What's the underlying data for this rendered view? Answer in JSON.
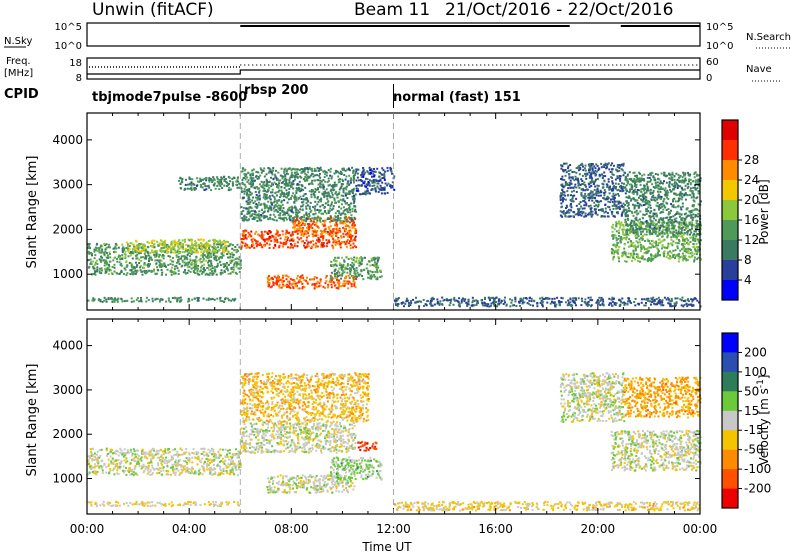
{
  "header": {
    "radar": "Unwin (fitACF)",
    "beam": "Beam 11",
    "date_range": "21/Oct/2016 - 22/Oct/2016"
  },
  "strips": {
    "nsky_label": "N.Sky",
    "nsearch_label": "N.Search",
    "nsky_ticks": [
      "10^5",
      "10^0"
    ],
    "nsearch_ticks": [
      "10^5",
      "10^0"
    ],
    "freq_label": "Freq.",
    "freq_unit": "[MHz]",
    "freq_ticks": [
      "18",
      "8"
    ],
    "nave_label": "Nave",
    "nave_ticks": [
      "60",
      "0"
    ],
    "cpid_label": "CPID"
  },
  "cpid_segments": [
    {
      "start_hour": 0,
      "label": "tbjmode7pulse -8600"
    },
    {
      "start_hour": 6,
      "label": "rbsp 200"
    },
    {
      "start_hour": 12,
      "label": "normal (fast) 151"
    }
  ],
  "colors": {
    "power": [
      "#0000ff",
      "#2a3e9c",
      "#3b7a62",
      "#4f9a5a",
      "#8cc83c",
      "#f2c700",
      "#ff8c00",
      "#ff3000",
      "#e00000"
    ],
    "velocity": [
      "#0000ff",
      "#2b4fb0",
      "#2e7d5a",
      "#6cc93a",
      "#c8c8c8",
      "#f5c400",
      "#ff8c00",
      "#ff5000",
      "#ee0000"
    ]
  },
  "chart_data": [
    {
      "type": "heatmap",
      "name": "power",
      "xlabel": "",
      "ylabel": "Slant Range [km]",
      "x_range_hours": [
        0,
        24
      ],
      "ylim": [
        200,
        4600
      ],
      "yticks": [
        "1000",
        "2000",
        "3000",
        "4000"
      ],
      "colorbar": {
        "label": "Power [dB]",
        "ticks": [
          "4",
          "8",
          "12",
          "16",
          "20",
          "24",
          "28"
        ],
        "range": [
          0,
          32
        ]
      },
      "regions": [
        {
          "t0": 0,
          "t1": 6,
          "r0": 1000,
          "r1": 1700,
          "v": 12
        },
        {
          "t0": 1.5,
          "t1": 5.5,
          "r0": 1500,
          "r1": 1800,
          "v": 17
        },
        {
          "t0": 0,
          "t1": 6,
          "r0": 400,
          "r1": 500,
          "v": 10
        },
        {
          "t0": 3.5,
          "t1": 6,
          "r0": 2900,
          "r1": 3200,
          "v": 10
        },
        {
          "t0": 6,
          "t1": 10.5,
          "r0": 1600,
          "r1": 2000,
          "v": 26
        },
        {
          "t0": 8,
          "t1": 10.5,
          "r0": 1900,
          "r1": 2300,
          "v": 24
        },
        {
          "t0": 6,
          "t1": 10.5,
          "r0": 2200,
          "r1": 3400,
          "v": 10
        },
        {
          "t0": 7,
          "t1": 10.5,
          "r0": 700,
          "r1": 1000,
          "v": 25
        },
        {
          "t0": 9.5,
          "t1": 11.5,
          "r0": 900,
          "r1": 1400,
          "v": 12
        },
        {
          "t0": 10.5,
          "t1": 12,
          "r0": 2800,
          "r1": 3400,
          "v": 6
        },
        {
          "t0": 12,
          "t1": 24,
          "r0": 300,
          "r1": 500,
          "v": 7
        },
        {
          "t0": 18.5,
          "t1": 21,
          "r0": 2300,
          "r1": 3500,
          "v": 7
        },
        {
          "t0": 20.5,
          "t1": 24,
          "r0": 1300,
          "r1": 2200,
          "v": 14
        },
        {
          "t0": 21,
          "t1": 24,
          "r0": 1900,
          "r1": 3300,
          "v": 10
        }
      ]
    },
    {
      "type": "heatmap",
      "name": "velocity",
      "xlabel": "Time UT",
      "ylabel": "Slant Range [km]",
      "x_range_hours": [
        0,
        24
      ],
      "xticks": [
        "00:00",
        "04:00",
        "08:00",
        "12:00",
        "16:00",
        "20:00",
        "00:00"
      ],
      "ylim": [
        200,
        4600
      ],
      "yticks": [
        "1000",
        "2000",
        "3000",
        "4000"
      ],
      "colorbar": {
        "label": "Velocity [m s^-1]",
        "ticks": [
          "200",
          "100",
          "50",
          "15",
          "-15",
          "-50",
          "-100",
          "-200"
        ],
        "range": [
          -250,
          250
        ]
      },
      "regions": [
        {
          "t0": 0,
          "t1": 6,
          "r0": 1100,
          "r1": 1700,
          "v": 0
        },
        {
          "t0": 0,
          "t1": 6,
          "r0": 400,
          "r1": 500,
          "v": -30
        },
        {
          "t0": 6,
          "t1": 10.5,
          "r0": 1600,
          "r1": 2300,
          "v": 0
        },
        {
          "t0": 6,
          "t1": 11,
          "r0": 2300,
          "r1": 3400,
          "v": -60
        },
        {
          "t0": 7,
          "t1": 10.5,
          "r0": 700,
          "r1": 1100,
          "v": 0
        },
        {
          "t0": 9.5,
          "t1": 11.5,
          "r0": 1000,
          "r1": 1500,
          "v": 40
        },
        {
          "t0": 10.5,
          "t1": 11.3,
          "r0": 1650,
          "r1": 1850,
          "v": -180
        },
        {
          "t0": 12,
          "t1": 24,
          "r0": 300,
          "r1": 500,
          "v": -40
        },
        {
          "t0": 18.5,
          "t1": 21,
          "r0": 2300,
          "r1": 3400,
          "v": 0
        },
        {
          "t0": 20.5,
          "t1": 24,
          "r0": 1200,
          "r1": 2100,
          "v": 0
        },
        {
          "t0": 21,
          "t1": 24,
          "r0": 2400,
          "r1": 3300,
          "v": -90
        }
      ]
    }
  ]
}
